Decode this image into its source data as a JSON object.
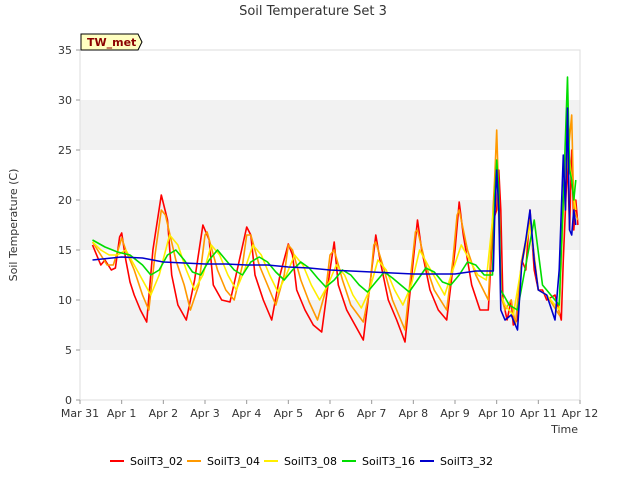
{
  "chart_data": {
    "type": "line",
    "title": "Soil Temperature Set 3",
    "xlabel": "Time",
    "ylabel": "Soil Temperature (C)",
    "ylim": [
      0,
      35
    ],
    "yticks": [
      0,
      5,
      10,
      15,
      20,
      25,
      30,
      35
    ],
    "xticks": [
      "Mar 31",
      "Apr 1",
      "Apr 2",
      "Apr 3",
      "Apr 4",
      "Apr 5",
      "Apr 6",
      "Apr 7",
      "Apr 8",
      "Apr 9",
      "Apr 10",
      "Apr 11",
      "Apr 12"
    ],
    "xlim_days": [
      0,
      12
    ],
    "grid": "alternating horizontal bands",
    "legend_position": "bottom",
    "annotation": "TW_met",
    "series": [
      {
        "name": "SoilT3_02",
        "color": "#ff0000",
        "x": [
          0.3,
          0.5,
          0.6,
          0.75,
          0.85,
          0.95,
          1.0,
          1.1,
          1.2,
          1.3,
          1.45,
          1.6,
          1.75,
          1.95,
          2.1,
          2.2,
          2.35,
          2.55,
          2.75,
          2.95,
          3.1,
          3.2,
          3.4,
          3.6,
          3.8,
          4.0,
          4.1,
          4.2,
          4.4,
          4.6,
          4.8,
          5.0,
          5.1,
          5.2,
          5.4,
          5.6,
          5.8,
          6.0,
          6.1,
          6.2,
          6.4,
          6.6,
          6.8,
          7.0,
          7.1,
          7.2,
          7.4,
          7.6,
          7.8,
          8.0,
          8.1,
          8.2,
          8.4,
          8.6,
          8.8,
          9.0,
          9.1,
          9.2,
          9.4,
          9.6,
          9.8,
          9.92,
          10.0,
          10.05,
          10.1,
          10.15,
          10.25,
          10.35,
          10.4,
          10.5,
          10.6,
          10.7,
          10.8,
          10.9,
          11.0,
          11.1,
          11.2,
          11.4,
          11.55,
          11.6,
          11.7,
          11.75,
          11.8,
          11.85,
          11.9,
          11.95
        ],
        "values": [
          15.5,
          13.5,
          14.0,
          13.0,
          13.2,
          16.3,
          16.7,
          14.0,
          11.8,
          10.5,
          9.0,
          7.8,
          15.0,
          20.5,
          18.0,
          12.5,
          9.5,
          8.0,
          12.0,
          17.5,
          16.0,
          11.5,
          10.0,
          9.8,
          13.5,
          17.3,
          16.5,
          12.5,
          10.0,
          8.0,
          12.5,
          15.6,
          14.5,
          11.0,
          9.0,
          7.5,
          6.8,
          13.0,
          15.8,
          11.5,
          9.0,
          7.5,
          6.0,
          13.0,
          16.5,
          14.0,
          10.0,
          8.0,
          5.8,
          14.0,
          18.0,
          15.0,
          11.0,
          9.0,
          8.0,
          15.0,
          19.8,
          16.5,
          11.5,
          9.0,
          9.0,
          18.0,
          19.0,
          23.0,
          19.0,
          10.0,
          8.0,
          10.0,
          7.5,
          8.0,
          14.0,
          13.0,
          19.0,
          13.0,
          11.0,
          11.0,
          10.0,
          10.5,
          8.0,
          14.0,
          24.0,
          17.0,
          25.0,
          17.0,
          20.0,
          17.5
        ]
      },
      {
        "name": "SoilT3_04",
        "color": "#ff9900",
        "x": [
          0.3,
          0.5,
          0.65,
          0.8,
          0.95,
          1.0,
          1.1,
          1.3,
          1.5,
          1.65,
          1.8,
          1.95,
          2.05,
          2.3,
          2.5,
          2.65,
          2.85,
          3.0,
          3.05,
          3.3,
          3.5,
          3.7,
          3.9,
          4.0,
          4.1,
          4.3,
          4.5,
          4.7,
          4.9,
          5.0,
          5.1,
          5.3,
          5.5,
          5.7,
          5.9,
          6.0,
          6.1,
          6.3,
          6.5,
          6.8,
          6.95,
          7.05,
          7.1,
          7.3,
          7.5,
          7.8,
          7.95,
          8.05,
          8.1,
          8.3,
          8.5,
          8.8,
          8.95,
          9.05,
          9.1,
          9.3,
          9.5,
          9.8,
          9.95,
          10.0,
          10.05,
          10.1,
          10.2,
          10.35,
          10.45,
          10.6,
          10.8,
          11.0,
          11.2,
          11.5,
          11.6,
          11.7,
          11.8,
          11.85,
          11.95
        ],
        "values": [
          15.8,
          14.5,
          13.5,
          13.5,
          15.5,
          16.2,
          15.0,
          13.0,
          10.5,
          9.0,
          14.5,
          19.0,
          18.5,
          14.0,
          11.5,
          9.0,
          11.5,
          16.5,
          16.8,
          13.0,
          11.0,
          10.0,
          13.5,
          16.5,
          16.5,
          13.5,
          11.5,
          9.5,
          12.5,
          15.5,
          15.0,
          12.0,
          9.8,
          8.0,
          11.0,
          14.5,
          15.0,
          12.0,
          9.5,
          7.8,
          11.0,
          15.5,
          15.8,
          13.0,
          10.0,
          7.0,
          13.0,
          16.8,
          17.0,
          13.5,
          11.0,
          9.0,
          14.0,
          18.5,
          19.0,
          15.0,
          12.5,
          10.0,
          22.0,
          27.0,
          20.0,
          10.5,
          9.0,
          10.0,
          7.5,
          14.0,
          18.0,
          11.0,
          10.5,
          8.5,
          20.0,
          24.0,
          28.5,
          19.0,
          18.0
        ]
      },
      {
        "name": "SoilT3_08",
        "color": "#ffee00",
        "x": [
          0.3,
          0.5,
          0.7,
          0.9,
          1.1,
          1.3,
          1.5,
          1.7,
          1.9,
          2.15,
          2.35,
          2.55,
          2.75,
          2.95,
          3.15,
          3.35,
          3.55,
          3.75,
          3.95,
          4.15,
          4.35,
          4.55,
          4.75,
          4.95,
          5.15,
          5.35,
          5.55,
          5.75,
          5.95,
          6.15,
          6.35,
          6.55,
          6.75,
          6.95,
          7.15,
          7.35,
          7.55,
          7.75,
          7.95,
          8.15,
          8.35,
          8.55,
          8.75,
          8.95,
          9.15,
          9.35,
          9.55,
          9.75,
          9.95,
          10.0,
          10.05,
          10.1,
          10.2,
          10.4,
          10.6,
          10.8,
          11.0,
          11.2,
          11.5,
          11.6,
          11.7,
          11.8,
          11.9
        ],
        "values": [
          15.8,
          15.0,
          14.5,
          14.5,
          15.0,
          13.5,
          12.0,
          10.5,
          12.5,
          16.5,
          15.5,
          13.0,
          11.0,
          12.5,
          15.5,
          14.5,
          12.5,
          11.0,
          13.0,
          15.5,
          14.5,
          12.5,
          10.8,
          12.5,
          14.5,
          13.5,
          11.5,
          10.0,
          11.5,
          13.5,
          12.5,
          10.5,
          9.2,
          11.0,
          14.0,
          13.0,
          11.0,
          9.5,
          11.5,
          15.0,
          13.5,
          12.0,
          10.5,
          13.0,
          15.5,
          14.0,
          12.5,
          12.0,
          20.0,
          24.0,
          18.0,
          10.5,
          9.5,
          8.5,
          13.5,
          17.5,
          11.0,
          10.5,
          9.0,
          19.0,
          26.0,
          22.0,
          19.0
        ]
      },
      {
        "name": "SoilT3_16",
        "color": "#00dd00",
        "x": [
          0.3,
          0.6,
          0.9,
          1.2,
          1.5,
          1.7,
          1.9,
          2.1,
          2.3,
          2.5,
          2.7,
          2.9,
          3.1,
          3.3,
          3.5,
          3.7,
          3.9,
          4.1,
          4.3,
          4.5,
          4.7,
          4.9,
          5.1,
          5.3,
          5.5,
          5.7,
          5.9,
          6.1,
          6.3,
          6.5,
          6.7,
          6.9,
          7.1,
          7.3,
          7.5,
          7.7,
          7.9,
          8.1,
          8.3,
          8.5,
          8.7,
          8.9,
          9.1,
          9.3,
          9.5,
          9.7,
          9.9,
          9.95,
          10.0,
          10.05,
          10.1,
          10.3,
          10.5,
          10.7,
          10.9,
          11.1,
          11.3,
          11.5,
          11.6,
          11.7,
          11.75,
          11.8,
          11.85,
          11.9
        ],
        "values": [
          16.0,
          15.3,
          14.8,
          14.5,
          13.5,
          12.5,
          13.0,
          14.5,
          15.0,
          14.0,
          12.8,
          12.5,
          14.0,
          15.0,
          14.0,
          13.0,
          12.5,
          13.8,
          14.3,
          13.8,
          12.8,
          12.0,
          13.0,
          13.8,
          13.2,
          12.2,
          11.3,
          12.0,
          13.0,
          12.5,
          11.5,
          10.8,
          11.8,
          12.8,
          12.2,
          11.5,
          10.8,
          12.0,
          13.2,
          12.8,
          11.8,
          11.5,
          12.5,
          13.8,
          13.5,
          12.5,
          12.5,
          20.0,
          24.0,
          21.0,
          11.0,
          9.5,
          9.0,
          13.5,
          18.0,
          11.5,
          10.5,
          9.5,
          20.0,
          32.3,
          23.0,
          22.0,
          20.0,
          22.0
        ]
      },
      {
        "name": "SoilT3_32",
        "color": "#0000cc",
        "x": [
          0.3,
          1.0,
          1.5,
          2.0,
          2.5,
          3.0,
          3.5,
          4.0,
          4.5,
          5.0,
          5.5,
          6.0,
          6.5,
          7.0,
          7.5,
          8.0,
          8.5,
          9.0,
          9.5,
          9.92,
          9.95,
          10.0,
          10.05,
          10.1,
          10.2,
          10.35,
          10.5,
          10.6,
          10.7,
          10.8,
          10.9,
          11.0,
          11.2,
          11.4,
          11.5,
          11.6,
          11.65,
          11.7,
          11.75,
          11.8,
          11.85,
          11.9
        ],
        "values": [
          14.0,
          14.3,
          14.2,
          13.8,
          13.7,
          13.6,
          13.6,
          13.5,
          13.5,
          13.3,
          13.2,
          13.0,
          12.9,
          12.8,
          12.7,
          12.6,
          12.6,
          12.6,
          12.9,
          12.9,
          18.0,
          23.0,
          19.0,
          9.0,
          8.0,
          8.5,
          7.0,
          13.5,
          16.0,
          19.0,
          14.0,
          11.0,
          10.5,
          8.0,
          13.0,
          24.5,
          19.0,
          29.2,
          17.0,
          16.5,
          19.0,
          17.5
        ]
      }
    ]
  }
}
